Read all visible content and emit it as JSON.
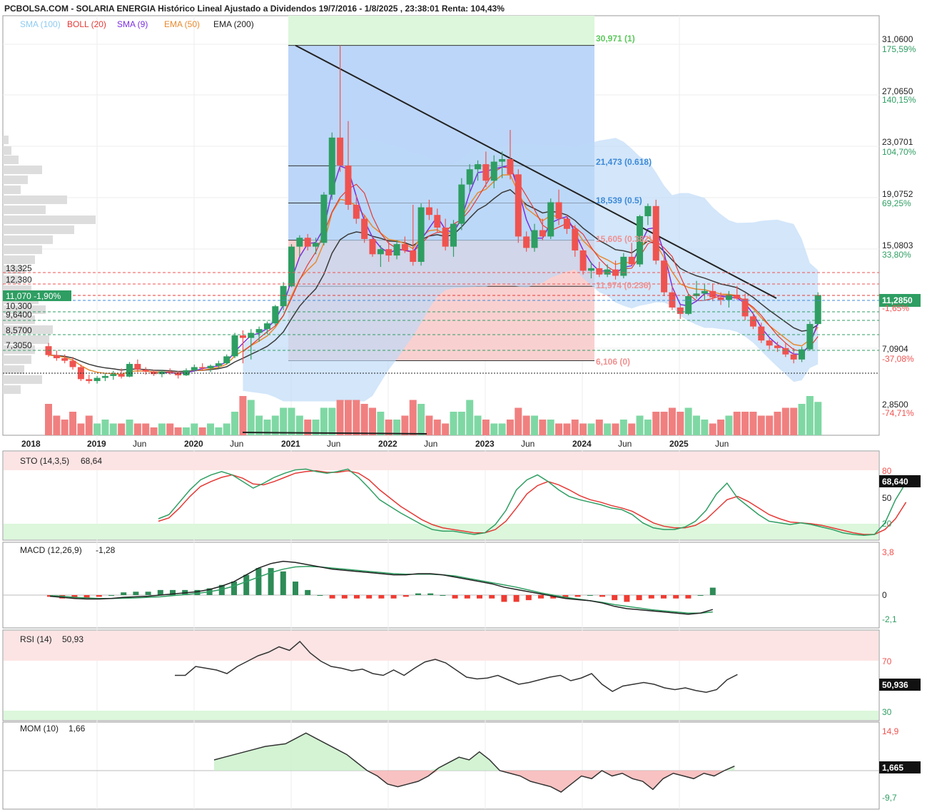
{
  "header": {
    "title": "PCBOLSA.COM - SOLARIA ENERGIA Histórico Lineal Ajustado a Dividendos 19/7/2016 - 1/8/2025 , 23:38:01 Renta: 104,43%",
    "legend": [
      {
        "label": "SMA (100)",
        "color": "#8ecbf0"
      },
      {
        "label": "BOLL (20)",
        "color": "#e53935"
      },
      {
        "label": "SMA (9)",
        "color": "#7b2fe0"
      },
      {
        "label": "EMA (50)",
        "color": "#e8892e"
      },
      {
        "label": "EMA (200)",
        "color": "#222222"
      }
    ]
  },
  "colors": {
    "up": "#2e9e62",
    "down": "#ef5350",
    "vol_up": "#7fd8a4",
    "vol_down": "#f08080",
    "boll_fill": "#bcd9f7",
    "green_band": "#dcf7dc",
    "red_band": "#fde4e4"
  },
  "price_axis": {
    "ticks": [
      {
        "price": "31,0600",
        "pct": "175,59%"
      },
      {
        "price": "27,0650",
        "pct": "140,15%"
      },
      {
        "price": "23,0701",
        "pct": "104,70%"
      },
      {
        "price": "19,0752",
        "pct": "69,25%"
      },
      {
        "price": "15,0803",
        "pct": "33,80%"
      },
      {
        "price": "7,0904",
        "pct": "-37,08%"
      },
      {
        "price": "2,8500",
        "pct": "-74,71%"
      }
    ],
    "current": "11,2850",
    "current_pct": "-1,65%"
  },
  "left_levels": [
    {
      "label": "13,325"
    },
    {
      "label": "12,380"
    },
    {
      "label": "11,070 -1,90%"
    },
    {
      "label": "10,300"
    },
    {
      "label": "9,6400"
    },
    {
      "label": "8,5700"
    },
    {
      "label": "7,3050"
    }
  ],
  "fib_levels": [
    {
      "label": "30,971 (1)",
      "price": 30.971
    },
    {
      "label": "21,473 (0.618)",
      "price": 21.473
    },
    {
      "label": "18,539 (0.5)",
      "price": 18.539
    },
    {
      "label": "15,605 (0.382)",
      "price": 15.605
    },
    {
      "label": "11,974 (0.236)",
      "price": 11.974
    },
    {
      "label": "6,106 (0)",
      "price": 6.106
    }
  ],
  "x_axis": [
    {
      "label": "2018",
      "bold": true
    },
    {
      "label": "2019",
      "bold": true
    },
    {
      "label": "Jun",
      "bold": false
    },
    {
      "label": "2020",
      "bold": true
    },
    {
      "label": "Jun",
      "bold": false
    },
    {
      "label": "2021",
      "bold": true
    },
    {
      "label": "Jun",
      "bold": false
    },
    {
      "label": "2022",
      "bold": true
    },
    {
      "label": "Jun",
      "bold": false
    },
    {
      "label": "2023",
      "bold": true
    },
    {
      "label": "Jun",
      "bold": false
    },
    {
      "label": "2024",
      "bold": true
    },
    {
      "label": "Jun",
      "bold": false
    },
    {
      "label": "2025",
      "bold": true
    },
    {
      "label": "Jun",
      "bold": false
    }
  ],
  "panels": {
    "sto": {
      "title": "STO (14,3,5)",
      "value": "68,64",
      "badge": "68,640",
      "ticks": [
        "80",
        "50",
        "20"
      ]
    },
    "macd": {
      "title": "MACD (12,26,9)",
      "value": "-1,28",
      "ticks": [
        "3,8",
        "0",
        "-2,1"
      ]
    },
    "rsi": {
      "title": "RSI (14)",
      "value": "50,93",
      "badge": "50,936",
      "ticks": [
        "70",
        "30"
      ]
    },
    "mom": {
      "title": "MOM (10)",
      "value": "1,66",
      "badge": "1,665",
      "ticks": [
        "14,9",
        "-9,7"
      ]
    }
  },
  "chart_data": [
    {
      "type": "candlestick",
      "title": "PCBOLSA.COM - SOLARIA ENERGIA Histórico Lineal Ajustado a Dividendos 19/7/2016 - 1/8/2025 , 23:38:01 Renta: 104,43%",
      "interval": "monthly",
      "ylim": [
        2.85,
        31.06
      ],
      "x_start": "2018-01",
      "ohlc": [
        [
          7.25,
          7.5,
          6.4,
          6.55
        ],
        [
          6.55,
          6.9,
          6.1,
          6.3
        ],
        [
          6.3,
          6.6,
          5.9,
          6.1
        ],
        [
          6.1,
          6.4,
          5.4,
          5.6
        ],
        [
          5.6,
          5.8,
          4.5,
          4.65
        ],
        [
          4.65,
          5.0,
          4.3,
          4.5
        ],
        [
          4.5,
          4.9,
          4.3,
          4.75
        ],
        [
          4.75,
          5.1,
          4.5,
          4.9
        ],
        [
          4.9,
          5.3,
          4.6,
          5.05
        ],
        [
          5.05,
          5.5,
          4.7,
          4.85
        ],
        [
          4.85,
          6.0,
          4.8,
          5.85
        ],
        [
          5.85,
          6.2,
          5.2,
          5.4
        ],
        [
          5.4,
          5.6,
          5.0,
          5.25
        ],
        [
          5.25,
          5.4,
          4.9,
          5.05
        ],
        [
          5.05,
          5.4,
          4.8,
          5.25
        ],
        [
          5.25,
          5.5,
          5.0,
          5.15
        ],
        [
          5.15,
          5.3,
          4.7,
          4.95
        ],
        [
          4.95,
          5.5,
          4.9,
          5.35
        ],
        [
          5.35,
          5.8,
          5.2,
          5.6
        ],
        [
          5.6,
          5.9,
          5.3,
          5.5
        ],
        [
          5.5,
          5.8,
          5.2,
          5.7
        ],
        [
          5.7,
          6.1,
          5.5,
          5.9
        ],
        [
          5.9,
          6.6,
          5.8,
          6.45
        ],
        [
          6.45,
          8.3,
          6.3,
          8.1
        ],
        [
          8.1,
          8.5,
          5.9,
          7.9
        ],
        [
          7.9,
          8.6,
          6.2,
          8.3
        ],
        [
          8.3,
          8.8,
          7.6,
          8.6
        ],
        [
          8.6,
          9.2,
          8.2,
          9.05
        ],
        [
          9.05,
          10.5,
          8.9,
          10.4
        ],
        [
          10.4,
          12.3,
          10.1,
          12.0
        ],
        [
          12.0,
          15.3,
          11.9,
          15.1
        ],
        [
          15.1,
          16.0,
          14.3,
          15.8
        ],
        [
          15.8,
          16.1,
          14.8,
          15.1
        ],
        [
          15.1,
          15.8,
          14.5,
          15.4
        ],
        [
          15.4,
          19.4,
          15.2,
          19.2
        ],
        [
          19.2,
          24.1,
          18.8,
          23.7
        ],
        [
          23.7,
          30.97,
          21.0,
          21.5
        ],
        [
          21.5,
          25.0,
          18.0,
          18.4
        ],
        [
          18.4,
          19.2,
          16.9,
          17.3
        ],
        [
          17.3,
          17.6,
          15.4,
          15.7
        ],
        [
          15.7,
          15.9,
          14.3,
          14.5
        ],
        [
          14.5,
          15.2,
          13.5,
          14.9
        ],
        [
          14.9,
          15.5,
          13.9,
          14.4
        ],
        [
          14.4,
          15.6,
          14.1,
          15.3
        ],
        [
          15.3,
          15.9,
          14.6,
          14.8
        ],
        [
          14.8,
          18.4,
          13.6,
          13.9
        ],
        [
          13.9,
          18.5,
          13.6,
          18.2
        ],
        [
          18.2,
          18.8,
          17.2,
          17.6
        ],
        [
          17.6,
          18.1,
          16.2,
          16.6
        ],
        [
          16.6,
          17.3,
          14.8,
          15.1
        ],
        [
          15.1,
          17.2,
          14.3,
          16.9
        ],
        [
          16.9,
          20.5,
          16.4,
          20.0
        ],
        [
          20.0,
          21.6,
          19.3,
          21.2
        ],
        [
          21.2,
          21.9,
          20.3,
          21.6
        ],
        [
          21.6,
          22.6,
          19.8,
          20.3
        ],
        [
          20.3,
          22.3,
          19.7,
          21.8
        ],
        [
          21.8,
          22.6,
          20.5,
          22.0
        ],
        [
          22.0,
          24.3,
          20.4,
          20.8
        ],
        [
          20.8,
          21.2,
          15.4,
          15.9
        ],
        [
          15.9,
          16.3,
          14.7,
          15.0
        ],
        [
          15.0,
          16.9,
          14.7,
          16.4
        ],
        [
          16.4,
          17.3,
          15.6,
          15.9
        ],
        [
          15.9,
          18.9,
          15.7,
          18.6
        ],
        [
          18.6,
          19.6,
          16.8,
          17.3
        ],
        [
          17.3,
          17.6,
          16.1,
          16.5
        ],
        [
          16.5,
          16.8,
          14.3,
          14.8
        ],
        [
          14.8,
          14.9,
          12.9,
          13.2
        ],
        [
          13.2,
          13.9,
          12.6,
          13.4
        ],
        [
          13.4,
          13.9,
          12.7,
          12.9
        ],
        [
          12.9,
          13.7,
          12.7,
          13.3
        ],
        [
          13.3,
          14.0,
          12.5,
          12.8
        ],
        [
          12.8,
          14.6,
          12.6,
          14.3
        ],
        [
          14.3,
          15.4,
          13.6,
          13.7
        ],
        [
          13.7,
          17.6,
          13.5,
          17.5
        ],
        [
          17.5,
          18.5,
          16.8,
          18.3
        ],
        [
          18.3,
          18.8,
          13.7,
          14.0
        ],
        [
          14.0,
          14.2,
          11.2,
          11.5
        ],
        [
          11.5,
          12.0,
          10.1,
          10.3
        ],
        [
          10.3,
          10.5,
          9.4,
          9.8
        ],
        [
          9.8,
          11.4,
          9.7,
          11.2
        ],
        [
          11.2,
          12.4,
          11.0,
          11.4
        ],
        [
          11.4,
          12.2,
          10.9,
          11.6
        ],
        [
          11.6,
          12.2,
          10.8,
          11.1
        ],
        [
          11.1,
          11.5,
          10.5,
          10.9
        ],
        [
          10.9,
          11.6,
          10.3,
          11.3
        ],
        [
          11.3,
          12.0,
          10.9,
          11.0
        ],
        [
          11.0,
          11.4,
          9.3,
          9.6
        ],
        [
          9.6,
          9.9,
          8.6,
          8.8
        ],
        [
          8.8,
          9.1,
          7.5,
          7.7
        ],
        [
          7.7,
          7.9,
          7.0,
          7.3
        ],
        [
          7.3,
          7.6,
          6.8,
          7.1
        ],
        [
          7.1,
          7.5,
          6.4,
          6.6
        ],
        [
          6.6,
          7.1,
          5.9,
          6.2
        ],
        [
          6.2,
          7.2,
          6.0,
          7.0
        ],
        [
          7.0,
          9.2,
          6.9,
          9.0
        ],
        [
          9.0,
          11.5,
          8.9,
          11.285
        ]
      ],
      "volume_relative": [
        0.8,
        0.5,
        0.4,
        0.6,
        0.3,
        0.5,
        0.3,
        0.4,
        0.3,
        0.3,
        0.4,
        0.3,
        0.3,
        0.2,
        0.3,
        0.3,
        0.2,
        0.2,
        0.3,
        0.2,
        0.3,
        0.2,
        0.3,
        0.6,
        1.0,
        0.9,
        0.5,
        0.4,
        0.5,
        0.7,
        0.7,
        0.5,
        0.4,
        0.4,
        0.7,
        0.7,
        0.9,
        0.9,
        0.9,
        0.8,
        0.7,
        0.6,
        0.4,
        0.4,
        0.5,
        0.9,
        0.8,
        0.5,
        0.4,
        0.3,
        0.6,
        0.6,
        0.9,
        0.5,
        0.4,
        0.3,
        0.3,
        0.4,
        0.7,
        0.5,
        0.5,
        0.4,
        0.4,
        0.3,
        0.3,
        0.4,
        0.3,
        0.3,
        0.4,
        0.3,
        0.3,
        0.4,
        0.3,
        0.5,
        0.4,
        0.6,
        0.6,
        0.7,
        0.6,
        0.7,
        0.5,
        0.4,
        0.3,
        0.4,
        0.5,
        0.6,
        0.6,
        0.6,
        0.5,
        0.5,
        0.6,
        0.7,
        0.7,
        0.8,
        1.0,
        0.85
      ]
    },
    {
      "type": "line",
      "title": "STO (14,3,5)",
      "ylim": [
        0,
        100
      ],
      "series": [
        {
          "values": [
            25,
            30,
            45,
            60,
            72,
            78,
            82,
            78,
            70,
            62,
            68,
            75,
            80,
            84,
            85,
            82,
            80,
            82,
            85,
            75,
            62,
            48,
            40,
            32,
            25,
            18,
            12,
            10,
            10,
            8,
            6,
            8,
            18,
            35,
            60,
            72,
            78,
            70,
            60,
            52,
            48,
            45,
            42,
            38,
            36,
            30,
            20,
            14,
            12,
            12,
            15,
            22,
            35,
            55,
            68,
            50,
            40,
            30,
            22,
            20,
            18,
            20,
            18,
            15,
            12,
            8,
            6,
            5,
            6,
            20,
            48,
            68.64
          ]
        },
        {
          "values": [
            22,
            26,
            38,
            52,
            64,
            70,
            75,
            78,
            74,
            67,
            66,
            70,
            75,
            80,
            82,
            83,
            81,
            81,
            83,
            80,
            72,
            60,
            50,
            40,
            32,
            24,
            18,
            14,
            12,
            10,
            8,
            8,
            12,
            22,
            38,
            55,
            65,
            70,
            66,
            60,
            53,
            48,
            45,
            41,
            38,
            34,
            27,
            20,
            16,
            14,
            14,
            17,
            24,
            36,
            48,
            52,
            46,
            38,
            30,
            25,
            21,
            20,
            19,
            17,
            14,
            11,
            8,
            6,
            6,
            12,
            25,
            45
          ]
        }
      ]
    },
    {
      "type": "line",
      "title": "MACD (12,26,9)",
      "ylim": [
        -2.1,
        3.8
      ],
      "series": [
        {
          "values": [
            -0.1,
            -0.2,
            -0.3,
            -0.35,
            -0.35,
            -0.3,
            -0.2,
            -0.15,
            -0.1,
            0,
            0.1,
            0.2,
            0.3,
            0.5,
            0.8,
            1.2,
            1.8,
            2.4,
            2.8,
            3.0,
            2.9,
            2.7,
            2.5,
            2.3,
            2.2,
            2.1,
            2.0,
            1.9,
            1.8,
            1.8,
            1.9,
            1.9,
            1.8,
            1.6,
            1.4,
            1.2,
            1.0,
            0.7,
            0.5,
            0.3,
            0.1,
            -0.1,
            -0.3,
            -0.4,
            -0.5,
            -0.7,
            -1.0,
            -1.2,
            -1.3,
            -1.4,
            -1.5,
            -1.6,
            -1.7,
            -1.6,
            -1.28
          ]
        },
        {
          "values": [
            -0.05,
            -0.1,
            -0.2,
            -0.25,
            -0.3,
            -0.3,
            -0.28,
            -0.25,
            -0.2,
            -0.15,
            -0.05,
            0.05,
            0.15,
            0.3,
            0.5,
            0.8,
            1.2,
            1.6,
            2.0,
            2.3,
            2.5,
            2.55,
            2.5,
            2.4,
            2.3,
            2.2,
            2.1,
            2.0,
            1.9,
            1.85,
            1.85,
            1.85,
            1.8,
            1.7,
            1.5,
            1.3,
            1.1,
            0.9,
            0.7,
            0.45,
            0.2,
            0.0,
            -0.2,
            -0.35,
            -0.5,
            -0.65,
            -0.85,
            -1.0,
            -1.15,
            -1.3,
            -1.4,
            -1.5,
            -1.6,
            -1.6,
            -1.5
          ]
        }
      ]
    },
    {
      "type": "line",
      "title": "RSI (14)",
      "ylim": [
        0,
        100
      ],
      "series": [
        {
          "values": [
            50,
            50,
            60,
            58,
            56,
            52,
            60,
            66,
            72,
            76,
            82,
            78,
            88,
            75,
            66,
            60,
            58,
            55,
            57,
            52,
            50,
            56,
            50,
            58,
            65,
            68,
            64,
            56,
            48,
            46,
            47,
            50,
            45,
            40,
            42,
            45,
            48,
            50,
            44,
            47,
            52,
            40,
            32,
            38,
            40,
            42,
            40,
            36,
            34,
            36,
            33,
            31,
            34,
            45,
            50.93
          ]
        }
      ]
    },
    {
      "type": "line",
      "title": "MOM (10)",
      "ylim": [
        -9.7,
        14.9
      ],
      "series": [
        {
          "values": [
            4,
            5,
            6,
            7,
            8,
            9,
            9.5,
            10,
            12,
            14,
            12,
            10,
            8,
            6,
            3,
            0,
            -2,
            -5,
            -6,
            -5,
            -4,
            -2,
            1,
            3,
            5,
            4,
            7,
            4,
            0,
            -1,
            -2,
            -4,
            -5,
            -6,
            -8,
            -5,
            -2,
            -3,
            0,
            -2,
            -1,
            -3,
            -4,
            -7,
            -3,
            -1,
            -2,
            -3,
            -1,
            -2,
            0,
            1.665
          ]
        }
      ]
    }
  ]
}
